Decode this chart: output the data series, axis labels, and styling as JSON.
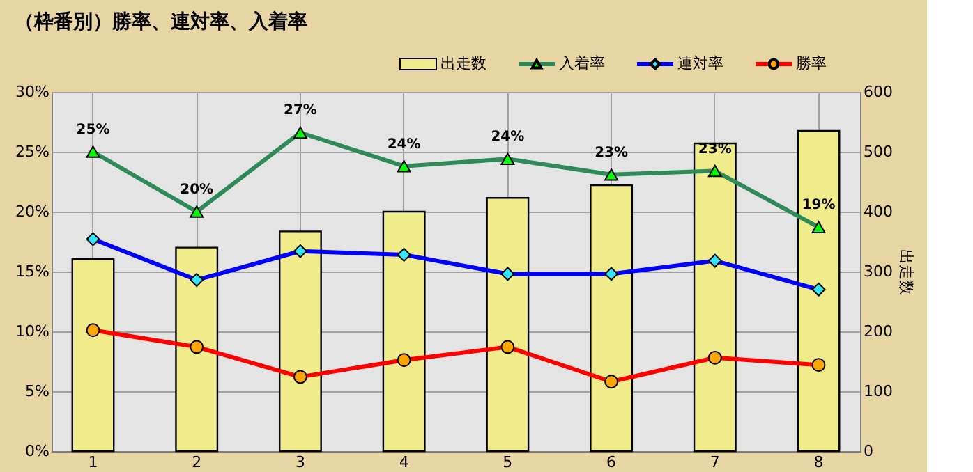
{
  "chart_data": {
    "type": "line",
    "title": "（枠番別）勝率、連対率、入着率",
    "y2label": "出走数",
    "categories": [
      "1",
      "2",
      "3",
      "4",
      "5",
      "6",
      "7",
      "8"
    ],
    "series": [
      {
        "name": "出走数",
        "type": "bar",
        "axis": "y2",
        "color": "#f0ec8c",
        "values": [
          321,
          340,
          367,
          400,
          423,
          444,
          514,
          535
        ]
      },
      {
        "name": "入着率",
        "color": "#2e8b57",
        "marker": "triangle",
        "values": [
          25.0,
          20.0,
          26.6,
          23.8,
          24.4,
          23.1,
          23.4,
          18.7
        ],
        "value_labels": [
          "25%",
          "20%",
          "27%",
          "24%",
          "24%",
          "23%",
          "23%",
          "19%"
        ]
      },
      {
        "name": "連対率",
        "color": "#0000ff",
        "marker": "diamond",
        "values": [
          17.7,
          14.3,
          16.7,
          16.4,
          14.8,
          14.8,
          15.9,
          13.5
        ]
      },
      {
        "name": "勝率",
        "color": "#ff0000",
        "marker": "circle",
        "values": [
          10.1,
          8.7,
          6.2,
          7.6,
          8.7,
          5.8,
          7.8,
          7.2
        ]
      }
    ],
    "ylim": [
      0,
      30
    ],
    "yticks": [
      {
        "value": 0,
        "label": "0%"
      },
      {
        "value": 5,
        "label": "5%"
      },
      {
        "value": 10,
        "label": "10%"
      },
      {
        "value": 15,
        "label": "15%"
      },
      {
        "value": 20,
        "label": "20%"
      },
      {
        "value": 25,
        "label": "25%"
      },
      {
        "value": 30,
        "label": "30%"
      }
    ],
    "y2lim": [
      0,
      600
    ],
    "y2ticks": [
      0,
      100,
      200,
      300,
      400,
      500,
      600
    ],
    "grid": true,
    "legend": "top right"
  }
}
